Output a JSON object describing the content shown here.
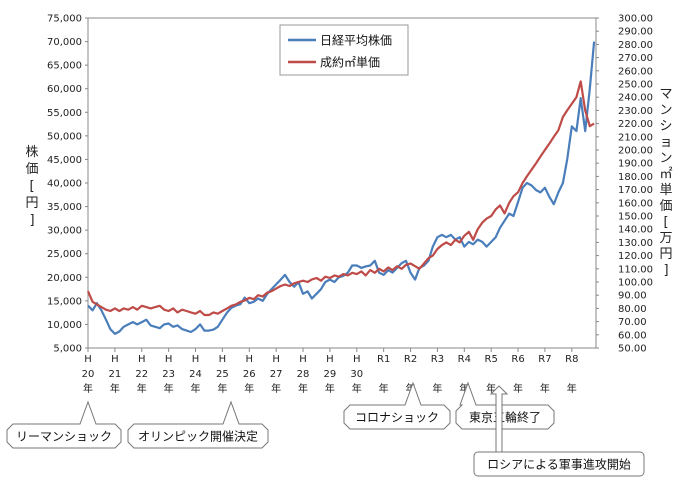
{
  "chart_data": {
    "type": "line",
    "title": "",
    "xlabel": "",
    "left_axis": {
      "label_chars": [
        "株",
        "価",
        "[",
        "円",
        "]"
      ],
      "ylim": [
        5000,
        75000
      ],
      "ticks": [
        "5,000",
        "10,000",
        "15,000",
        "20,000",
        "25,000",
        "30,000",
        "35,000",
        "40,000",
        "45,000",
        "50,000",
        "55,000",
        "60,000",
        "65,000",
        "70,000",
        "75,000"
      ]
    },
    "right_axis": {
      "label_chars": [
        "マ",
        "ン",
        "シ",
        "ョ",
        "ン",
        "㎡",
        "単",
        "価",
        "[",
        "万",
        "円",
        "]"
      ],
      "ylim": [
        50,
        300
      ],
      "ticks": [
        "50.00",
        "60.00",
        "70.00",
        "80.00",
        "90.00",
        "100.00",
        "110.00",
        "120.00",
        "130.00",
        "140.00",
        "150.00",
        "160.00",
        "170.00",
        "180.00",
        "190.00",
        "200.00",
        "210.00",
        "220.00",
        "230.00",
        "240.00",
        "250.00",
        "260.00",
        "270.00",
        "280.00",
        "290.00",
        "300.00"
      ]
    },
    "x_labels": [
      {
        "era": "H",
        "num": "20",
        "unit": "年"
      },
      {
        "era": "H",
        "num": "21",
        "unit": "年"
      },
      {
        "era": "H",
        "num": "22",
        "unit": "年"
      },
      {
        "era": "H",
        "num": "23",
        "unit": "年"
      },
      {
        "era": "H",
        "num": "24",
        "unit": "年"
      },
      {
        "era": "H",
        "num": "25",
        "unit": "年"
      },
      {
        "era": "H",
        "num": "26",
        "unit": "年"
      },
      {
        "era": "H",
        "num": "27",
        "unit": "年"
      },
      {
        "era": "H",
        "num": "28",
        "unit": "年"
      },
      {
        "era": "H",
        "num": "29",
        "unit": "年"
      },
      {
        "era": "H",
        "num": "30",
        "unit": "年"
      },
      {
        "era": "R1",
        "num": "",
        "unit": "年"
      },
      {
        "era": "R2",
        "num": "",
        "unit": "年"
      },
      {
        "era": "R3",
        "num": "",
        "unit": "年"
      },
      {
        "era": "R4",
        "num": "",
        "unit": "年"
      },
      {
        "era": "R5",
        "num": "",
        "unit": "年"
      },
      {
        "era": "R6",
        "num": "",
        "unit": "年"
      },
      {
        "era": "R7",
        "num": "",
        "unit": "年"
      },
      {
        "era": "R8",
        "num": "",
        "unit": "年"
      }
    ],
    "x_range": [
      0,
      18.9
    ],
    "legend": {
      "placement": "top-center"
    },
    "series": [
      {
        "name": "日経平均株価",
        "axis": "left",
        "color": "#4a7ebb",
        "points": [
          [
            0.0,
            14000
          ],
          [
            0.17,
            13000
          ],
          [
            0.33,
            14500
          ],
          [
            0.5,
            13000
          ],
          [
            0.67,
            11000
          ],
          [
            0.83,
            9000
          ],
          [
            1.0,
            8000
          ],
          [
            1.17,
            8500
          ],
          [
            1.33,
            9500
          ],
          [
            1.5,
            10000
          ],
          [
            1.67,
            10500
          ],
          [
            1.83,
            10000
          ],
          [
            2.0,
            10500
          ],
          [
            2.17,
            11000
          ],
          [
            2.33,
            9800
          ],
          [
            2.5,
            9500
          ],
          [
            2.67,
            9200
          ],
          [
            2.83,
            10000
          ],
          [
            3.0,
            10200
          ],
          [
            3.17,
            9500
          ],
          [
            3.33,
            9800
          ],
          [
            3.5,
            9000
          ],
          [
            3.67,
            8700
          ],
          [
            3.83,
            8400
          ],
          [
            4.0,
            9000
          ],
          [
            4.17,
            10000
          ],
          [
            4.33,
            8700
          ],
          [
            4.5,
            8700
          ],
          [
            4.67,
            8900
          ],
          [
            4.83,
            9500
          ],
          [
            5.0,
            11000
          ],
          [
            5.17,
            12500
          ],
          [
            5.33,
            13500
          ],
          [
            5.5,
            14000
          ],
          [
            5.67,
            14300
          ],
          [
            5.83,
            15700
          ],
          [
            6.0,
            14500
          ],
          [
            6.17,
            14800
          ],
          [
            6.33,
            15500
          ],
          [
            6.5,
            15000
          ],
          [
            6.67,
            16500
          ],
          [
            6.83,
            17500
          ],
          [
            7.0,
            18500
          ],
          [
            7.17,
            19500
          ],
          [
            7.33,
            20500
          ],
          [
            7.5,
            19000
          ],
          [
            7.67,
            18000
          ],
          [
            7.83,
            19000
          ],
          [
            8.0,
            16500
          ],
          [
            8.17,
            17000
          ],
          [
            8.33,
            15500
          ],
          [
            8.5,
            16500
          ],
          [
            8.67,
            17500
          ],
          [
            8.83,
            19000
          ],
          [
            9.0,
            19500
          ],
          [
            9.17,
            19000
          ],
          [
            9.33,
            20000
          ],
          [
            9.5,
            20300
          ],
          [
            9.67,
            21000
          ],
          [
            9.83,
            22500
          ],
          [
            10.0,
            22500
          ],
          [
            10.17,
            22000
          ],
          [
            10.33,
            22300
          ],
          [
            10.5,
            22500
          ],
          [
            10.67,
            23500
          ],
          [
            10.83,
            21000
          ],
          [
            11.0,
            20500
          ],
          [
            11.17,
            21500
          ],
          [
            11.33,
            21000
          ],
          [
            11.5,
            22000
          ],
          [
            11.67,
            23000
          ],
          [
            11.83,
            23500
          ],
          [
            12.0,
            21000
          ],
          [
            12.17,
            19500
          ],
          [
            12.33,
            22000
          ],
          [
            12.5,
            22500
          ],
          [
            12.67,
            23500
          ],
          [
            12.83,
            26500
          ],
          [
            13.0,
            28500
          ],
          [
            13.17,
            29000
          ],
          [
            13.33,
            28500
          ],
          [
            13.5,
            29000
          ],
          [
            13.67,
            28000
          ],
          [
            13.83,
            28500
          ],
          [
            14.0,
            26500
          ],
          [
            14.17,
            27500
          ],
          [
            14.33,
            27000
          ],
          [
            14.5,
            28000
          ],
          [
            14.67,
            27500
          ],
          [
            14.83,
            26500
          ],
          [
            15.0,
            27500
          ],
          [
            15.17,
            28500
          ],
          [
            15.33,
            30500
          ],
          [
            15.5,
            32000
          ],
          [
            15.67,
            33500
          ],
          [
            15.83,
            33000
          ],
          [
            16.0,
            36000
          ],
          [
            16.17,
            39000
          ],
          [
            16.33,
            40000
          ],
          [
            16.5,
            39500
          ],
          [
            16.67,
            38500
          ],
          [
            16.83,
            38000
          ],
          [
            17.0,
            39000
          ],
          [
            17.17,
            37000
          ],
          [
            17.33,
            35500
          ],
          [
            17.5,
            38000
          ],
          [
            17.67,
            40000
          ],
          [
            17.83,
            45000
          ],
          [
            18.0,
            52000
          ],
          [
            18.17,
            51000
          ],
          [
            18.33,
            58000
          ],
          [
            18.5,
            51000
          ],
          [
            18.67,
            60000
          ],
          [
            18.83,
            70000
          ]
        ]
      },
      {
        "name": "成約㎡単価",
        "axis": "right",
        "color": "#be4b48",
        "points": [
          [
            0.0,
            93
          ],
          [
            0.17,
            85
          ],
          [
            0.33,
            83
          ],
          [
            0.5,
            81
          ],
          [
            0.67,
            79
          ],
          [
            0.83,
            78
          ],
          [
            1.0,
            80
          ],
          [
            1.17,
            78
          ],
          [
            1.33,
            80
          ],
          [
            1.5,
            79
          ],
          [
            1.67,
            81
          ],
          [
            1.83,
            79
          ],
          [
            2.0,
            82
          ],
          [
            2.17,
            81
          ],
          [
            2.33,
            80
          ],
          [
            2.5,
            81
          ],
          [
            2.67,
            82
          ],
          [
            2.83,
            79
          ],
          [
            3.0,
            78
          ],
          [
            3.17,
            80
          ],
          [
            3.33,
            77
          ],
          [
            3.5,
            79
          ],
          [
            3.67,
            78
          ],
          [
            3.83,
            77
          ],
          [
            4.0,
            76
          ],
          [
            4.17,
            78
          ],
          [
            4.33,
            75
          ],
          [
            4.5,
            75
          ],
          [
            4.67,
            77
          ],
          [
            4.83,
            76
          ],
          [
            5.0,
            78
          ],
          [
            5.17,
            80
          ],
          [
            5.33,
            82
          ],
          [
            5.5,
            83
          ],
          [
            5.67,
            85
          ],
          [
            5.83,
            86
          ],
          [
            6.0,
            88
          ],
          [
            6.17,
            87
          ],
          [
            6.33,
            90
          ],
          [
            6.5,
            89
          ],
          [
            6.67,
            92
          ],
          [
            6.83,
            93
          ],
          [
            7.0,
            95
          ],
          [
            7.17,
            97
          ],
          [
            7.33,
            98
          ],
          [
            7.5,
            97
          ],
          [
            7.67,
            99
          ],
          [
            7.83,
            100
          ],
          [
            8.0,
            101
          ],
          [
            8.17,
            100
          ],
          [
            8.33,
            102
          ],
          [
            8.5,
            103
          ],
          [
            8.67,
            101
          ],
          [
            8.83,
            104
          ],
          [
            9.0,
            103
          ],
          [
            9.17,
            105
          ],
          [
            9.33,
            104
          ],
          [
            9.5,
            106
          ],
          [
            9.67,
            105
          ],
          [
            9.83,
            107
          ],
          [
            10.0,
            106
          ],
          [
            10.17,
            108
          ],
          [
            10.33,
            105
          ],
          [
            10.5,
            109
          ],
          [
            10.67,
            107
          ],
          [
            10.83,
            110
          ],
          [
            11.0,
            108
          ],
          [
            11.17,
            111
          ],
          [
            11.33,
            109
          ],
          [
            11.5,
            112
          ],
          [
            11.67,
            110
          ],
          [
            11.83,
            113
          ],
          [
            12.0,
            114
          ],
          [
            12.17,
            112
          ],
          [
            12.33,
            110
          ],
          [
            12.5,
            114
          ],
          [
            12.67,
            118
          ],
          [
            12.83,
            120
          ],
          [
            13.0,
            125
          ],
          [
            13.17,
            128
          ],
          [
            13.33,
            130
          ],
          [
            13.5,
            128
          ],
          [
            13.67,
            132
          ],
          [
            13.83,
            130
          ],
          [
            14.0,
            135
          ],
          [
            14.17,
            138
          ],
          [
            14.33,
            132
          ],
          [
            14.5,
            140
          ],
          [
            14.67,
            145
          ],
          [
            14.83,
            148
          ],
          [
            15.0,
            150
          ],
          [
            15.17,
            155
          ],
          [
            15.33,
            158
          ],
          [
            15.5,
            152
          ],
          [
            15.67,
            160
          ],
          [
            15.83,
            165
          ],
          [
            16.0,
            168
          ],
          [
            16.17,
            175
          ],
          [
            16.33,
            180
          ],
          [
            16.5,
            185
          ],
          [
            16.67,
            190
          ],
          [
            16.83,
            195
          ],
          [
            17.0,
            200
          ],
          [
            17.17,
            205
          ],
          [
            17.33,
            210
          ],
          [
            17.5,
            215
          ],
          [
            17.67,
            225
          ],
          [
            17.83,
            230
          ],
          [
            18.0,
            235
          ],
          [
            18.17,
            240
          ],
          [
            18.33,
            252
          ],
          [
            18.5,
            230
          ],
          [
            18.67,
            218
          ],
          [
            18.83,
            220
          ]
        ]
      }
    ],
    "annotations": [
      {
        "text": "リーマンショック",
        "x": 0.2,
        "pointer": "up"
      },
      {
        "text": "オリンピック開催決定",
        "x": 5.1,
        "pointer": "up"
      },
      {
        "text": "コロナショック",
        "x": 12.1,
        "pointer": "up"
      },
      {
        "text": "東京五輪終了",
        "x": 14.2,
        "pointer": "up"
      },
      {
        "text": "ロシアによる軍事進攻開始",
        "x": 15.0,
        "pointer": "arrow-up"
      }
    ]
  }
}
